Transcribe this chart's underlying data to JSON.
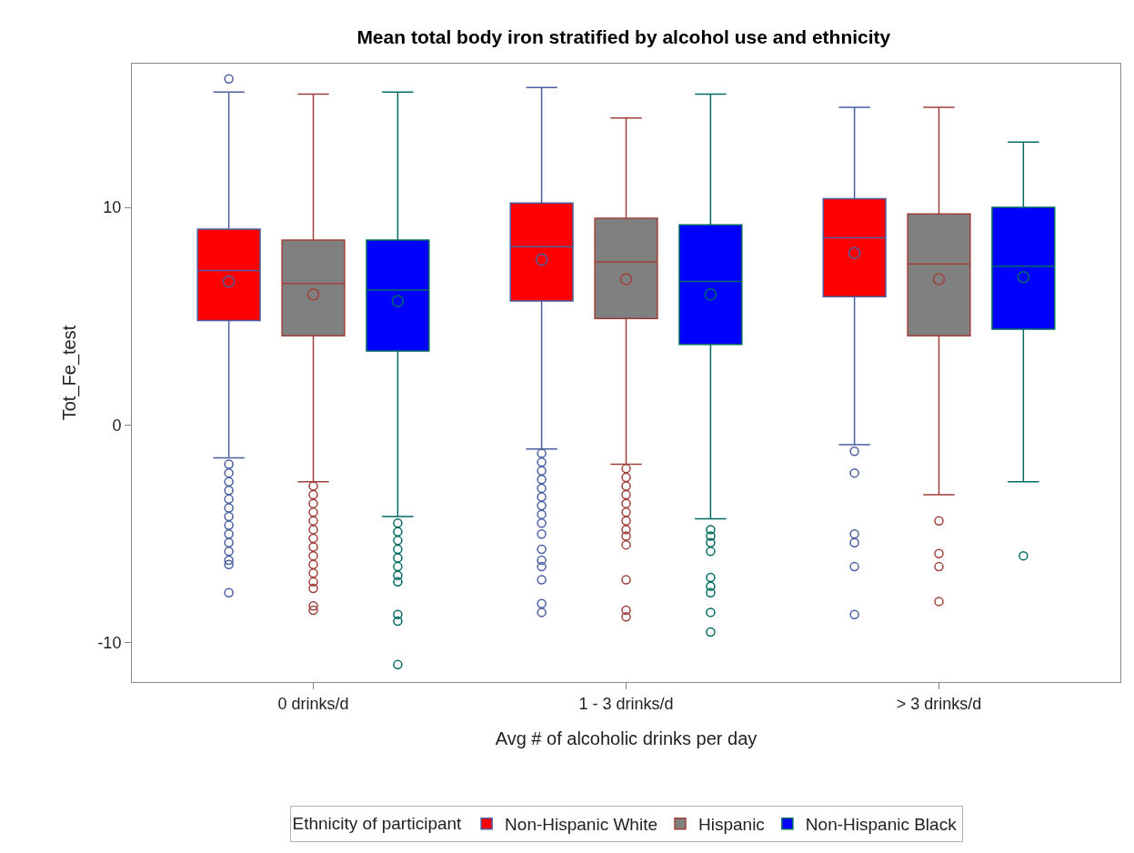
{
  "chart_data": {
    "type": "box",
    "title": "Mean total body iron stratified by alcohol use and ethnicity",
    "xlabel": "Avg # of alcoholic drinks per day",
    "ylabel": "Tot_Fe_test",
    "legend_title": "Ethnicity of participant",
    "categories": [
      "0 drinks/d",
      "1 - 3 drinks/d",
      "> 3 drinks/d"
    ],
    "ylim": [
      -11.8,
      16.6
    ],
    "yticks": [
      -10,
      0,
      10
    ],
    "grid": false,
    "legend": "bottom",
    "marker": "circle",
    "series": [
      {
        "name": "Non-Hispanic White",
        "color": "#ff0000",
        "boxes": [
          {
            "low": -1.5,
            "q1": 4.8,
            "median": 7.1,
            "q3": 9.0,
            "high": 15.3,
            "mean": 6.6,
            "outliers": [
              15.9,
              -1.8,
              -2.2,
              -2.6,
              -3.0,
              -3.4,
              -3.8,
              -4.2,
              -4.6,
              -5.0,
              -5.4,
              -5.8,
              -6.2,
              -6.4,
              -7.7
            ]
          },
          {
            "low": -1.1,
            "q1": 5.7,
            "median": 8.2,
            "q3": 10.2,
            "high": 15.5,
            "mean": 7.6,
            "outliers": [
              -1.3,
              -1.7,
              -2.1,
              -2.5,
              -2.9,
              -3.3,
              -3.7,
              -4.1,
              -4.5,
              -5.0,
              -5.7,
              -6.2,
              -6.5,
              -7.1,
              -8.2,
              -8.6
            ]
          },
          {
            "low": -0.9,
            "q1": 5.9,
            "median": 8.6,
            "q3": 10.4,
            "high": 14.6,
            "mean": 7.9,
            "outliers": [
              -1.2,
              -2.2,
              -5.0,
              -5.4,
              -6.5,
              -8.7
            ]
          }
        ]
      },
      {
        "name": "Hispanic",
        "color": "#808080",
        "boxes": [
          {
            "low": -2.6,
            "q1": 4.1,
            "median": 6.5,
            "q3": 8.5,
            "high": 15.2,
            "mean": 6.0,
            "outliers": [
              -2.8,
              -3.2,
              -3.6,
              -4.0,
              -4.4,
              -4.8,
              -5.2,
              -5.6,
              -6.0,
              -6.4,
              -6.8,
              -7.2,
              -7.5,
              -8.3,
              -8.5
            ]
          },
          {
            "low": -1.8,
            "q1": 4.9,
            "median": 7.5,
            "q3": 9.5,
            "high": 14.1,
            "mean": 6.7,
            "outliers": [
              -2.0,
              -2.4,
              -2.8,
              -3.2,
              -3.6,
              -4.0,
              -4.4,
              -4.8,
              -5.1,
              -5.5,
              -7.1,
              -8.5,
              -8.8
            ]
          },
          {
            "low": -3.2,
            "q1": 4.1,
            "median": 7.4,
            "q3": 9.7,
            "high": 14.6,
            "mean": 6.7,
            "outliers": [
              -4.4,
              -5.9,
              -6.5,
              -8.1
            ]
          }
        ]
      },
      {
        "name": "Non-Hispanic Black",
        "color": "#0000ff",
        "boxes": [
          {
            "low": -4.2,
            "q1": 3.4,
            "median": 6.2,
            "q3": 8.5,
            "high": 15.3,
            "mean": 5.7,
            "outliers": [
              -4.5,
              -4.9,
              -5.3,
              -5.7,
              -6.1,
              -6.5,
              -6.9,
              -7.2,
              -8.7,
              -9.0,
              -11.0
            ]
          },
          {
            "low": -4.3,
            "q1": 3.7,
            "median": 6.6,
            "q3": 9.2,
            "high": 15.2,
            "mean": 6.0,
            "outliers": [
              -4.8,
              -5.1,
              -5.4,
              -5.8,
              -7.0,
              -7.4,
              -7.7,
              -8.6,
              -9.5
            ]
          },
          {
            "low": -2.6,
            "q1": 4.4,
            "median": 7.3,
            "q3": 10.0,
            "high": 13.0,
            "mean": 6.8,
            "outliers": [
              -6.0
            ]
          }
        ]
      }
    ]
  }
}
